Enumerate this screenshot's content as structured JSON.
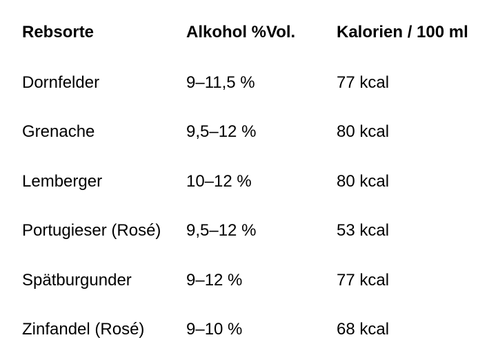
{
  "table": {
    "header": [
      "Rebsorte",
      "Alkohol %Vol.",
      "Kalorien / 100 ml"
    ],
    "rows": [
      [
        "Dornfelder",
        "9–11,5 %",
        "77 kcal"
      ],
      [
        "Grenache",
        "9,5–12 %",
        "80 kcal"
      ],
      [
        "Lemberger",
        "10–12 %",
        "80 kcal"
      ],
      [
        "Portugieser (Rosé)",
        "9,5–12 %",
        "53 kcal"
      ],
      [
        "Spätburgunder",
        "9–12 %",
        "77 kcal"
      ],
      [
        "Zinfandel (Rosé)",
        "9–10 %",
        "68 kcal"
      ]
    ]
  }
}
